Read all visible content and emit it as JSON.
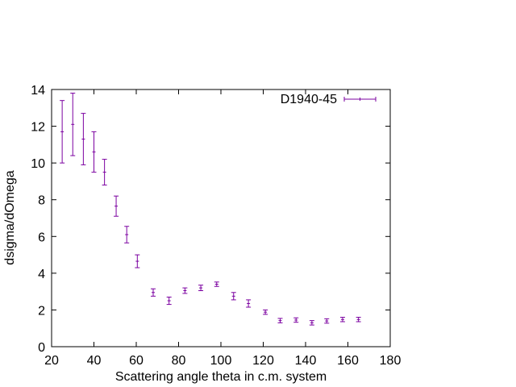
{
  "chart_data": {
    "type": "scatter",
    "title": "",
    "xlabel": "Scattering angle theta in c.m. system",
    "ylabel": "dsigma/dOmega",
    "xlim": [
      20,
      180
    ],
    "ylim": [
      0,
      14
    ],
    "xticks": [
      20,
      40,
      60,
      80,
      100,
      120,
      140,
      160,
      180
    ],
    "yticks": [
      0,
      2,
      4,
      6,
      8,
      10,
      12,
      14
    ],
    "grid": false,
    "legend_position": "top-right",
    "error_bars": true,
    "series": [
      {
        "name": "D1940-45",
        "color": "#7b00a0",
        "x": [
          25,
          30,
          35,
          40,
          45,
          50.5,
          55.5,
          60.5,
          68,
          75.5,
          83,
          90.5,
          98,
          106,
          113,
          121,
          128,
          135.5,
          143,
          150,
          157.5,
          165
        ],
        "y": [
          11.7,
          12.1,
          11.3,
          10.6,
          9.5,
          7.65,
          6.1,
          4.65,
          2.95,
          2.5,
          3.05,
          3.2,
          3.4,
          2.75,
          2.35,
          1.88,
          1.42,
          1.45,
          1.3,
          1.4,
          1.48,
          1.48
        ],
        "yerr": [
          1.7,
          1.7,
          1.4,
          1.1,
          0.7,
          0.55,
          0.45,
          0.35,
          0.2,
          0.2,
          0.15,
          0.15,
          0.12,
          0.2,
          0.2,
          0.12,
          0.12,
          0.12,
          0.12,
          0.12,
          0.12,
          0.12
        ]
      }
    ]
  }
}
